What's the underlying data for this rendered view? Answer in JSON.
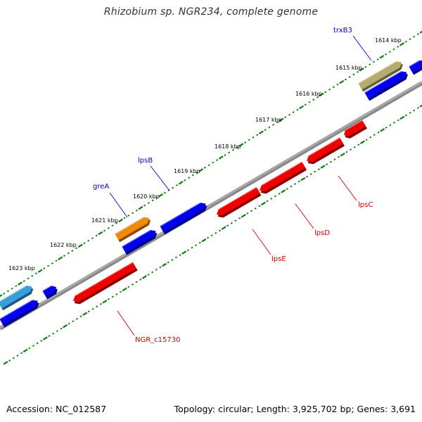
{
  "title": "Rhizobium sp. NGR234, complete genome",
  "footer": {
    "accession": "Accession: NC_012587",
    "topology": "Topology: circular; Length: 3,925,702 bp; Genes: 3,691"
  },
  "colors": {
    "forward_gene": "#0000ee",
    "reverse_gene": "#ee0000",
    "trxB3_gene": "#b3ac6e",
    "greA_gene": "#f08a0c",
    "partial_gene": "#3a9fd8",
    "backbone": "#8a8a8a",
    "ticks": "#117711",
    "forward_label": "#0000cc",
    "reverse_label": "#cc0000"
  },
  "ruler": {
    "unit": "kbp",
    "labels": [
      "1614 kbp",
      "1615 kbp",
      "1616 kbp",
      "1617 kbp",
      "1618 kbp",
      "1619 kbp",
      "1620 kbp",
      "1621 kbp",
      "1622 kbp",
      "1623 kbp"
    ]
  },
  "genes": {
    "forward": [
      {
        "name": "trxB3",
        "label_color": "#0000cc"
      },
      {
        "name": "greA",
        "label_color": "#0000cc"
      },
      {
        "name": "lpsB",
        "label_color": "#0000cc"
      }
    ],
    "reverse": [
      {
        "name": "lpsC",
        "label_color": "#cc0000"
      },
      {
        "name": "lpsD",
        "label_color": "#cc0000"
      },
      {
        "name": "lpsE",
        "label_color": "#cc0000"
      },
      {
        "name": "NGR_c15730",
        "label_color": "#cc0000"
      }
    ]
  }
}
